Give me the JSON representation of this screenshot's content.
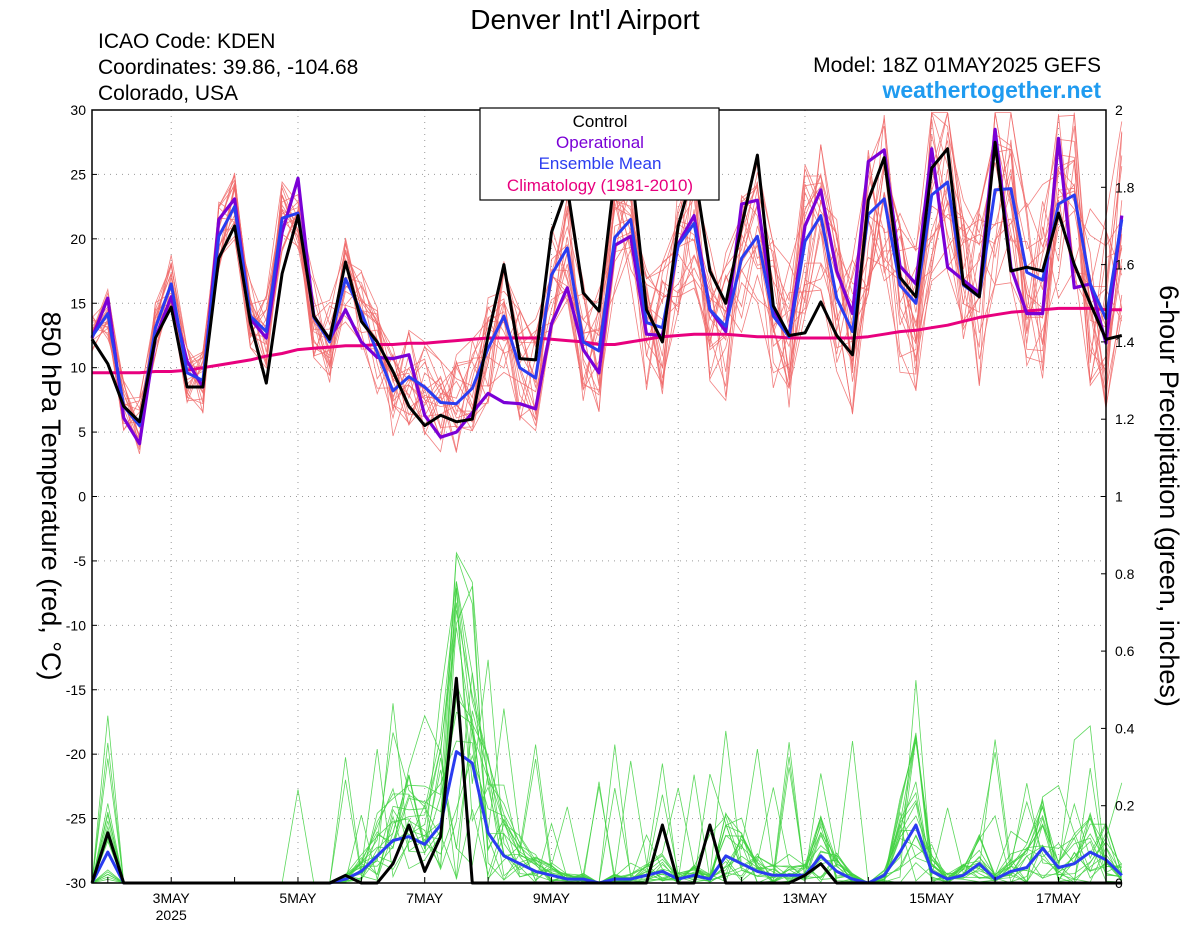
{
  "header": {
    "title": "Denver Int'l Airport",
    "icao": "ICAO Code: KDEN",
    "coords": "Coordinates: 39.86, -104.68",
    "location": "Colorado, USA",
    "model": "Model: 18Z 01MAY2025 GEFS",
    "brand": "weathertogether.net"
  },
  "colors": {
    "control": "#000000",
    "operational": "#7a00d6",
    "mean": "#2a3cf0",
    "climatology": "#e8007e",
    "members_temp": "#f06a6a",
    "members_precip": "#3fd13f",
    "brand": "#1f9bf0"
  },
  "legend": {
    "items": [
      {
        "label": "Control",
        "color": "#000000"
      },
      {
        "label": "Operational",
        "color": "#7a00d6"
      },
      {
        "label": "Ensemble Mean",
        "color": "#2a3cf0"
      },
      {
        "label": "Climatology (1981-2010)",
        "color": "#e8007e"
      }
    ]
  },
  "chart_data": {
    "type": "line",
    "ylabel": "850 hPa Temperature (red, °C)",
    "y2label": "6-hour Precipitation (green, inches)",
    "ylim": [
      -30,
      30
    ],
    "y2lim": [
      0,
      2
    ],
    "yticks": [
      30,
      25,
      20,
      15,
      10,
      5,
      0,
      -5,
      -10,
      -15,
      -20,
      -25,
      -30
    ],
    "y2ticks": [
      "2",
      "1.8",
      "1.6",
      "1.4",
      "1.2",
      "1",
      "0.8",
      "0.6",
      "0.4",
      "0.2",
      "0"
    ],
    "y2tick_values": [
      2,
      1.8,
      1.6,
      1.4,
      1.2,
      1,
      0.8,
      0.6,
      0.4,
      0.2,
      0
    ],
    "x_start_day": 1.75,
    "x_end_day": 17.75,
    "x_step_hours": 6,
    "xticks": [
      {
        "day": 3,
        "label": "3MAY",
        "sub": "2025"
      },
      {
        "day": 5,
        "label": "5MAY"
      },
      {
        "day": 7,
        "label": "7MAY"
      },
      {
        "day": 9,
        "label": "9MAY"
      },
      {
        "day": 11,
        "label": "11MAY"
      },
      {
        "day": 13,
        "label": "13MAY"
      },
      {
        "day": 15,
        "label": "15MAY"
      },
      {
        "day": 17,
        "label": "17MAY"
      }
    ],
    "grid": true,
    "series_temp": [
      {
        "name": "Control",
        "values": [
          12.2,
          10.3,
          7.0,
          5.8,
          12.3,
          14.7,
          8.5,
          8.5,
          18.5,
          21.0,
          13.5,
          8.8,
          17.3,
          21.8,
          14.0,
          12.2,
          18.2,
          13.6,
          12.0,
          9.7,
          7.0,
          5.5,
          6.3,
          5.8,
          6.0,
          12.5,
          18.0,
          10.7,
          10.6,
          20.5,
          24.0,
          15.8,
          14.4,
          25.0,
          26.0,
          14.5,
          12.0,
          21.0,
          25.5,
          17.5,
          15.0,
          21.0,
          26.5,
          14.8,
          12.5,
          12.7,
          15.1,
          12.5,
          11.0,
          23.0,
          26.3,
          17.0,
          15.5,
          25.5,
          27.0,
          16.5,
          15.5,
          27.5,
          17.5,
          17.8,
          17.5,
          22.0,
          18.0,
          15.0,
          12.2,
          12.5
        ]
      },
      {
        "name": "Operational",
        "values": [
          12.3,
          15.4,
          6.1,
          4.1,
          12.3,
          15.5,
          10.5,
          8.5,
          21.5,
          23.1,
          13.8,
          12.3,
          20.5,
          24.7,
          14.0,
          12.2,
          14.5,
          12.0,
          10.8,
          10.7,
          11.0,
          6.3,
          4.6,
          5.0,
          6.5,
          8.0,
          7.3,
          7.2,
          6.8,
          13.4,
          16.2,
          11.4,
          9.6,
          19.5,
          20.2,
          12.6,
          12.5,
          19.6,
          21.8,
          14.5,
          12.8,
          22.7,
          23.0,
          14.5,
          12.5,
          21.0,
          23.8,
          17.5,
          14.2,
          26.0,
          26.9,
          17.9,
          16.5,
          27.0,
          17.8,
          16.8,
          15.8,
          28.5,
          17.8,
          14.2,
          14.2,
          27.8,
          16.2,
          16.5,
          11.9,
          21.8
        ]
      },
      {
        "name": "Ensemble Mean",
        "values": [
          12.4,
          14.2,
          7.0,
          5.5,
          13.1,
          16.5,
          9.6,
          9.0,
          20.2,
          22.5,
          14.0,
          12.8,
          21.6,
          22.0,
          13.9,
          12.0,
          16.9,
          14.3,
          11.2,
          8.2,
          9.3,
          8.5,
          7.3,
          7.2,
          8.4,
          11.5,
          14.0,
          10.0,
          9.2,
          17.2,
          19.3,
          12.0,
          11.3,
          20.1,
          21.5,
          13.5,
          13.1,
          19.5,
          21.2,
          14.5,
          13.2,
          18.5,
          20.2,
          14.0,
          12.4,
          19.8,
          21.8,
          15.4,
          12.8,
          21.9,
          23.1,
          16.4,
          15.0,
          23.4,
          24.4,
          16.4,
          15.5,
          23.8,
          23.9,
          17.4,
          16.8,
          22.7,
          23.4,
          16.5,
          13.8,
          21.5
        ]
      },
      {
        "name": "Climatology (1981-2010)",
        "values": [
          9.6,
          9.6,
          9.6,
          9.6,
          9.7,
          9.7,
          9.8,
          10.0,
          10.2,
          10.4,
          10.6,
          10.9,
          11.1,
          11.4,
          11.5,
          11.6,
          11.7,
          11.7,
          11.8,
          11.8,
          11.9,
          11.9,
          12.0,
          12.1,
          12.2,
          12.3,
          12.3,
          12.3,
          12.3,
          12.2,
          12.1,
          12.0,
          11.8,
          11.8,
          12.0,
          12.2,
          12.4,
          12.5,
          12.6,
          12.6,
          12.6,
          12.5,
          12.4,
          12.4,
          12.3,
          12.3,
          12.3,
          12.3,
          12.3,
          12.4,
          12.6,
          12.8,
          12.9,
          13.1,
          13.3,
          13.6,
          13.9,
          14.1,
          14.3,
          14.4,
          14.5,
          14.6,
          14.6,
          14.6,
          14.5,
          14.5
        ]
      }
    ],
    "series_precip": [
      {
        "name": "Control",
        "values": [
          0.0,
          0.13,
          0.0,
          0.0,
          0.0,
          0.0,
          0.0,
          0.0,
          0.0,
          0.0,
          0.0,
          0.0,
          0.0,
          0.0,
          0.0,
          0.0,
          0.02,
          0.0,
          0.0,
          0.05,
          0.15,
          0.03,
          0.12,
          0.53,
          0.0,
          0.0,
          0.0,
          0.0,
          0.0,
          0.0,
          0.0,
          0.0,
          0.0,
          0.0,
          0.0,
          0.0,
          0.15,
          0.0,
          0.0,
          0.15,
          0.0,
          0.0,
          0.0,
          0.0,
          0.0,
          0.02,
          0.05,
          0.0,
          0.0,
          0.0,
          0.0,
          0.0,
          0.0,
          0.0,
          0.0,
          0.0,
          0.0,
          0.0,
          0.0,
          0.0,
          0.0,
          0.0,
          0.0,
          0.0,
          0.0,
          0.0
        ]
      },
      {
        "name": "Ensemble Mean",
        "values": [
          0.0,
          0.08,
          0.0,
          0.0,
          0.0,
          0.0,
          0.0,
          0.0,
          0.0,
          0.0,
          0.0,
          0.0,
          0.0,
          0.0,
          0.0,
          0.0,
          0.01,
          0.03,
          0.07,
          0.11,
          0.12,
          0.1,
          0.15,
          0.34,
          0.31,
          0.13,
          0.07,
          0.05,
          0.03,
          0.02,
          0.01,
          0.01,
          0.0,
          0.01,
          0.01,
          0.02,
          0.03,
          0.01,
          0.02,
          0.01,
          0.07,
          0.05,
          0.03,
          0.02,
          0.02,
          0.02,
          0.07,
          0.03,
          0.01,
          0.0,
          0.02,
          0.08,
          0.15,
          0.03,
          0.01,
          0.02,
          0.05,
          0.01,
          0.03,
          0.04,
          0.09,
          0.04,
          0.05,
          0.08,
          0.06,
          0.02
        ]
      }
    ]
  }
}
